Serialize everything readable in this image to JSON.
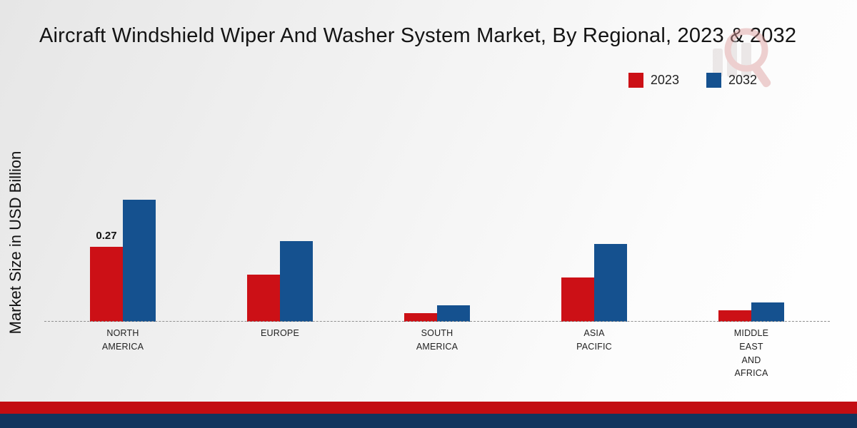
{
  "header": {
    "title": "Aircraft Windshield Wiper And Washer System Market, By Regional, 2023 & 2032"
  },
  "axes": {
    "y_label": "Market Size in USD Billion"
  },
  "legend": {
    "items": [
      {
        "label": "2023",
        "color": "#cc1016"
      },
      {
        "label": "2032",
        "color": "#15518f"
      }
    ]
  },
  "chart_data": {
    "type": "bar",
    "title": "Aircraft Windshield Wiper And Washer System Market, By Regional, 2023 & 2032",
    "xlabel": "",
    "ylabel": "Market Size in USD Billion",
    "ylim": [
      0,
      0.55
    ],
    "grid": false,
    "baseline_style": "dashed",
    "legend_position": "top-right",
    "categories": [
      "NORTH AMERICA",
      "EUROPE",
      "SOUTH AMERICA",
      "ASIA PACIFIC",
      "MIDDLE EAST AND AFRICA"
    ],
    "series": [
      {
        "name": "2023",
        "color": "#cc1016",
        "values": [
          0.27,
          0.17,
          0.03,
          0.16,
          0.04
        ]
      },
      {
        "name": "2032",
        "color": "#15518f",
        "values": [
          0.44,
          0.29,
          0.06,
          0.28,
          0.07
        ]
      }
    ],
    "annotations": [
      {
        "series": "2023",
        "category": "NORTH AMERICA",
        "text": "0.27"
      }
    ]
  },
  "footer": {
    "red_strip_color": "#c30d12",
    "navy_strip_color": "#11355e"
  }
}
